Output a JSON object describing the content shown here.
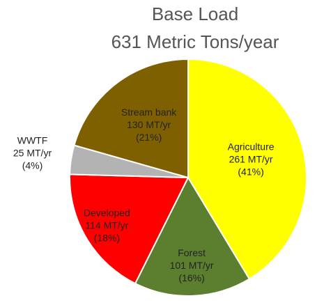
{
  "chart_data": {
    "type": "pie",
    "title": "Base Load",
    "subtitle": "631 Metric Tons/year",
    "categories": [
      "Agriculture",
      "Forest",
      "Developed",
      "WWTF",
      "Stream bank"
    ],
    "values": [
      261,
      101,
      114,
      25,
      130
    ],
    "value_labels": [
      "261 MT/yr",
      "101 MT/yr",
      "114 MT/yr",
      "25 MT/yr",
      "130 MT/yr"
    ],
    "percents": [
      41,
      16,
      18,
      4,
      21
    ],
    "percent_labels": [
      "(41%)",
      "(16%)",
      "(18%)",
      "(4%)",
      "(21%)"
    ],
    "colors": [
      "#ffff00",
      "#5b7f2f",
      "#ff0000",
      "#b3b3b3",
      "#7f6000"
    ]
  }
}
